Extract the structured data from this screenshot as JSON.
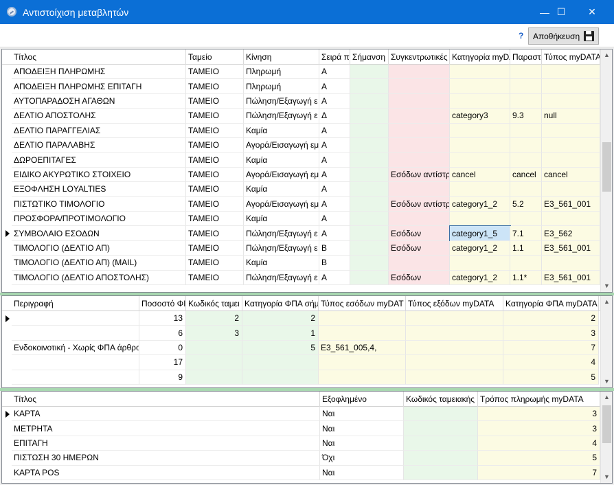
{
  "window": {
    "title": "Αντιστοίχιση μεταβλητών",
    "minimize": "—",
    "maximize": "☐",
    "close": "✕"
  },
  "toolbar": {
    "help": "?",
    "save_label": "Αποθήκευση"
  },
  "colors": {
    "green": "#e9f7e9",
    "pink": "#fbe4e6",
    "yellow": "#fcfbe3",
    "titlebar": "#0b6fd6"
  },
  "grid1": {
    "columns": [
      "Τίτλος",
      "Ταμείο",
      "Κίνηση",
      "Σειρά π",
      "Σήμανση",
      "Συγκεντρωτικές",
      "Κατηγορία myDA",
      "Παραστ",
      "Τύπος myDATA"
    ],
    "rows": [
      [
        "ΑΠΟΔΕΙΞΗ ΠΛΗΡΩΜΗΣ",
        "ΤΑΜΕΙΟ",
        "Πληρωμή",
        "Α",
        "",
        "",
        "",
        "",
        ""
      ],
      [
        "ΑΠΟΔΕΙΞΗ ΠΛΗΡΩΜΗΣ ΕΠΙΤΑΓΗ",
        "ΤΑΜΕΙΟ",
        "Πληρωμή",
        "Α",
        "",
        "",
        "",
        "",
        ""
      ],
      [
        "ΑΥΤΟΠΑΡΑΔΟΣΗ ΑΓΑΘΩΝ",
        "ΤΑΜΕΙΟ",
        "Πώληση/Εξαγωγή ε",
        "Α",
        "",
        "",
        "",
        "",
        ""
      ],
      [
        "ΔΕΛΤΙΟ ΑΠΟΣΤΟΛΗΣ",
        "ΤΑΜΕΙΟ",
        "Πώληση/Εξαγωγή ε",
        "Δ",
        "",
        "",
        "category3",
        "9.3",
        "null"
      ],
      [
        "ΔΕΛΤΙΟ ΠΑΡΑΓΓΕΛΙΑΣ",
        "ΤΑΜΕΙΟ",
        "Καμία",
        "Α",
        "",
        "",
        "",
        "",
        ""
      ],
      [
        "ΔΕΛΤΙΟ ΠΑΡΑΛΑΒΗΣ",
        "ΤΑΜΕΙΟ",
        "Αγορά/Εισαγωγή εμ",
        "Α",
        "",
        "",
        "",
        "",
        ""
      ],
      [
        "ΔΩΡΟΕΠΙΤΑΓΕΣ",
        "ΤΑΜΕΙΟ",
        "Καμία",
        "Α",
        "",
        "",
        "",
        "",
        ""
      ],
      [
        "ΕΙΔΙΚΟ ΑΚΥΡΩΤΙΚΟ ΣΤΟΙΧΕΙΟ",
        "ΤΑΜΕΙΟ",
        "Αγορά/Εισαγωγή εμ",
        "Α",
        "",
        "Εσόδων αντίστρ",
        "cancel",
        "cancel",
        "cancel"
      ],
      [
        "ΕΞΟΦΛΗΣΗ LOYALTIES",
        "ΤΑΜΕΙΟ",
        "Καμία",
        "Α",
        "",
        "",
        "",
        "",
        ""
      ],
      [
        "ΠΙΣΤΩΤΙΚΟ ΤΙΜΟΛΟΓΙΟ",
        "ΤΑΜΕΙΟ",
        "Αγορά/Εισαγωγή εμ",
        "Α",
        "",
        "Εσόδων αντίστρ",
        "category1_2",
        "5.2",
        "E3_561_001"
      ],
      [
        "ΠΡΟΣΦΟΡΑ/ΠΡΟΤΙΜΟΛΟΓΙΟ",
        "ΤΑΜΕΙΟ",
        "Καμία",
        "Α",
        "",
        "",
        "",
        "",
        ""
      ],
      [
        "ΣΥΜΒΟΛΑΙΟ ΕΣΟΔΩΝ",
        "ΤΑΜΕΙΟ",
        "Πώληση/Εξαγωγή ε",
        "Α",
        "",
        "Εσόδων",
        "category1_5",
        "7.1",
        "E3_562"
      ],
      [
        "ΤΙΜΟΛΟΓΙΟ (ΔΕΛΤΙΟ ΑΠ)",
        "ΤΑΜΕΙΟ",
        "Πώληση/Εξαγωγή ε",
        "Β",
        "",
        "Εσόδων",
        "category1_2",
        "1.1",
        "E3_561_001"
      ],
      [
        "ΤΙΜΟΛΟΓΙΟ (ΔΕΛΤΙΟ ΑΠ) (MAIL)",
        "ΤΑΜΕΙΟ",
        "Καμία",
        "Β",
        "",
        "",
        "",
        "",
        ""
      ],
      [
        "ΤΙΜΟΛΟΓΙΟ (ΔΕΛΤΙΟ ΑΠΟΣΤΟΛΗΣ)",
        "ΤΑΜΕΙΟ",
        "Πώληση/Εξαγωγή ε",
        "Α",
        "",
        "Εσόδων",
        "category1_2",
        "1.1*",
        "E3_561_001"
      ]
    ]
  },
  "grid2": {
    "columns": [
      "Περιγραφή",
      "Ποσοστό ΦΙ",
      "Κωδικός ταμει",
      "Κατηγορία ΦΠΑ σήμ",
      "Τύπος εσόδων myDAT",
      "Τύπος εξόδων myDATA",
      "Κατηγορία ΦΠΑ myDATA"
    ],
    "rows": [
      [
        "",
        "13",
        "2",
        "2",
        "",
        "",
        "2"
      ],
      [
        "",
        "6",
        "3",
        "1",
        "",
        "",
        "3"
      ],
      [
        "Ενδοκοινοτική - Χωρίς ΦΠΑ άρθρο",
        "0",
        "",
        "5",
        "E3_561_005,4,",
        "",
        "7"
      ],
      [
        "",
        "17",
        "",
        "",
        "",
        "",
        "4"
      ],
      [
        "",
        "9",
        "",
        "",
        "",
        "",
        "5"
      ]
    ]
  },
  "grid3": {
    "columns": [
      "Τίτλος",
      "Εξοφλημένο",
      "Κωδικός ταμειακής",
      "Τρόπος πληρωμής myDATA"
    ],
    "rows": [
      [
        "ΚΑΡΤΑ",
        "Ναι",
        "",
        "3"
      ],
      [
        "ΜΕΤΡΗΤΑ",
        "Ναι",
        "",
        "3"
      ],
      [
        "ΕΠΙΤΑΓΗ",
        "Ναι",
        "",
        "4"
      ],
      [
        "ΠΙΣΤΩΣΗ 30 ΗΜΕΡΩΝ",
        "Όχι",
        "",
        "5"
      ],
      [
        "ΚΑΡΤΑ POS",
        "Ναι",
        "",
        "7"
      ]
    ]
  }
}
